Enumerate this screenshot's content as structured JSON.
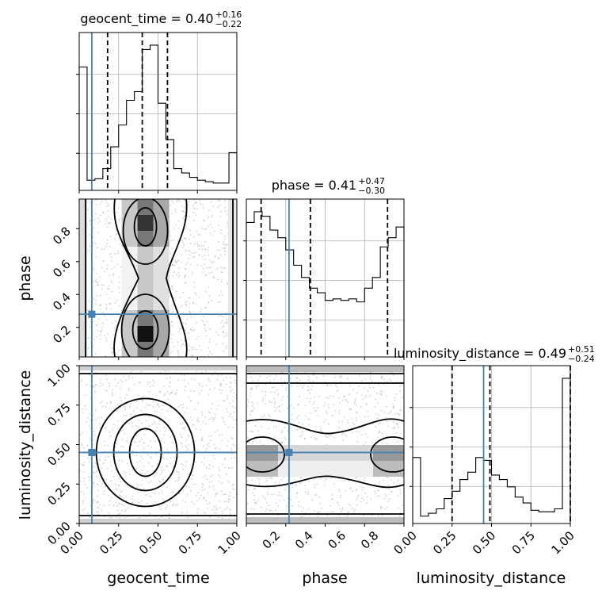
{
  "chart_data": {
    "type": "corner",
    "parameters": [
      "geocent_time",
      "phase",
      "luminosity_distance"
    ],
    "truths": {
      "geocent_time": 0.08,
      "phase": 0.28,
      "luminosity_distance": 0.45
    },
    "ranges": {
      "geocent_time": [
        0,
        1
      ],
      "phase": [
        0.02,
        0.98
      ],
      "luminosity_distance": [
        0,
        1
      ]
    },
    "titles": [
      {
        "param": "geocent_time",
        "text": "geocent_time = 0.40",
        "plus": "+0.16",
        "minus": "−0.22"
      },
      {
        "param": "phase",
        "text": "phase = 0.41",
        "plus": "+0.47",
        "minus": "−0.30"
      },
      {
        "param": "luminosity_distance",
        "text": "luminosity_distance = 0.49",
        "plus": "+0.51",
        "minus": "−0.24"
      }
    ],
    "quantiles": {
      "geocent_time": [
        0.18,
        0.4,
        0.56
      ],
      "phase": [
        0.11,
        0.41,
        0.88
      ],
      "luminosity_distance": [
        0.25,
        0.49,
        1.0
      ]
    },
    "histograms": {
      "geocent_time": {
        "edges": [
          0,
          0.05,
          0.1,
          0.15,
          0.2,
          0.25,
          0.3,
          0.35,
          0.4,
          0.45,
          0.5,
          0.55,
          0.6,
          0.65,
          0.7,
          0.75,
          0.8,
          0.85,
          0.9,
          0.95,
          1.0
        ],
        "counts": [
          0.85,
          0.07,
          0.08,
          0.15,
          0.3,
          0.45,
          0.62,
          0.68,
          0.97,
          1.0,
          0.6,
          0.35,
          0.15,
          0.12,
          0.09,
          0.07,
          0.06,
          0.05,
          0.05,
          0.26
        ]
      },
      "phase": {
        "edges": [
          0.02,
          0.068,
          0.116,
          0.164,
          0.212,
          0.26,
          0.308,
          0.356,
          0.404,
          0.452,
          0.5,
          0.548,
          0.596,
          0.644,
          0.692,
          0.74,
          0.788,
          0.836,
          0.884,
          0.932,
          0.98
        ],
        "counts": [
          0.88,
          0.95,
          0.92,
          0.83,
          0.78,
          0.7,
          0.6,
          0.52,
          0.45,
          0.42,
          0.37,
          0.38,
          0.37,
          0.38,
          0.36,
          0.45,
          0.52,
          0.72,
          0.78,
          0.85
        ]
      },
      "luminosity_distance": {
        "edges": [
          0,
          0.05,
          0.1,
          0.15,
          0.2,
          0.25,
          0.3,
          0.35,
          0.4,
          0.45,
          0.5,
          0.55,
          0.6,
          0.65,
          0.7,
          0.75,
          0.8,
          0.85,
          0.9,
          0.95,
          1.0
        ],
        "counts": [
          0.45,
          0.05,
          0.07,
          0.1,
          0.17,
          0.22,
          0.3,
          0.35,
          0.45,
          0.43,
          0.33,
          0.3,
          0.25,
          0.18,
          0.14,
          0.09,
          0.08,
          0.08,
          0.1,
          0.99
        ]
      }
    },
    "axis_ticks": {
      "geocent_time": [
        "0.00",
        "0.25",
        "0.50",
        "0.75",
        "1.00"
      ],
      "phase": [
        "0.2",
        "0.4",
        "0.6",
        "0.8"
      ],
      "luminosity_distance": [
        "0.00",
        "0.25",
        "0.50",
        "0.75",
        "1.00"
      ]
    },
    "xlabels": [
      "geocent_time",
      "phase",
      "luminosity_distance"
    ],
    "ylabels": [
      "phase",
      "luminosity_distance"
    ],
    "grid": true
  }
}
